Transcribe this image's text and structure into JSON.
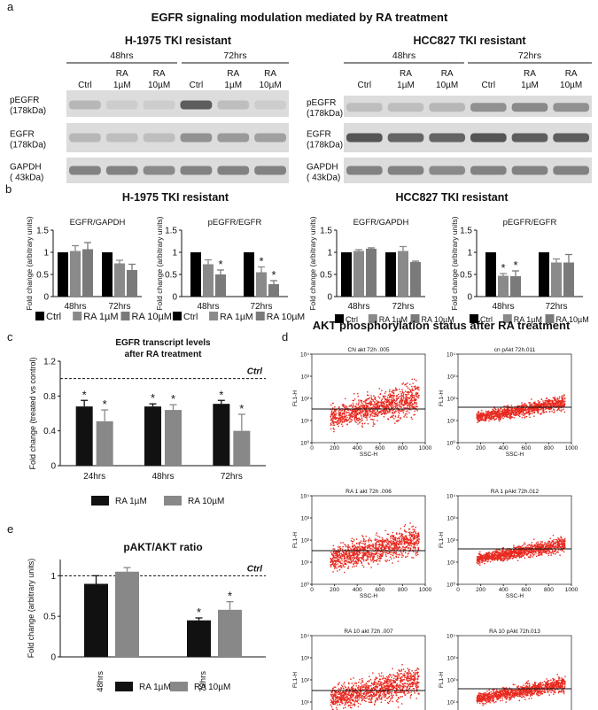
{
  "panel_a": {
    "label": "a",
    "title": "EGFR signaling modulation mediated by RA treatment",
    "blots": [
      {
        "title": "H-1975 TKI resistant",
        "time_groups": [
          "48hrs",
          "72hrs"
        ],
        "lanes": [
          [
            "Ctrl"
          ],
          [
            "RA",
            "1µM"
          ],
          [
            "RA",
            "10µM"
          ],
          [
            "Ctrl"
          ],
          [
            "RA",
            "1µM"
          ],
          [
            "RA",
            "10µM"
          ]
        ],
        "rows": [
          [
            "pEGFR",
            "(178kDa)"
          ],
          [
            "EGFR",
            "(178kDa)"
          ],
          [
            "GAPDH",
            "( 43kDa)"
          ]
        ]
      },
      {
        "title": "HCC827 TKI resistant",
        "time_groups": [
          "48hrs",
          "72hrs"
        ],
        "lanes": [
          [
            "Ctrl"
          ],
          [
            "RA",
            "1µM"
          ],
          [
            "RA",
            "10µM"
          ],
          [
            "Ctrl"
          ],
          [
            "RA",
            "1µM"
          ],
          [
            "RA",
            "10µM"
          ]
        ],
        "rows": [
          [
            "pEGFR",
            "(178kDa)"
          ],
          [
            "EGFR",
            "(178kDa)"
          ],
          [
            "GAPDH",
            "( 43kDa)"
          ]
        ]
      }
    ]
  },
  "panel_b": {
    "label": "b",
    "titles": [
      "H-1975 TKI resistant",
      "HCC827 TKI resistant"
    ]
  },
  "panel_c": {
    "label": "c"
  },
  "panel_d": {
    "label": "d",
    "title": "AKT phosphorylation status after RA treatment",
    "plots": [
      {
        "title": "CN akt 72h .005"
      },
      {
        "title": "cn pAkt 72h.011"
      },
      {
        "title": "RA 1 akt 72h .006"
      },
      {
        "title": "RA 1 pAkt 72h.012"
      },
      {
        "title": "RA 10 akt 72h .007"
      },
      {
        "title": "RA 10 pAkt 72h.013"
      }
    ],
    "xlabel": "SSC-H",
    "ylabel": "FL1-H",
    "xticks": [
      0,
      200,
      400,
      600,
      800,
      1000
    ],
    "yticks": [
      "10⁰",
      "10¹",
      "10²",
      "10³",
      "10⁴"
    ],
    "colors": {
      "dots": "#e8281e"
    }
  },
  "panel_e": {
    "label": "e"
  },
  "legend": {
    "ctrl": "Ctrl",
    "ra1": "RA 1µM",
    "ra10": "RA 10µM"
  },
  "colors": {
    "ctrl": "#000000",
    "ra1": "#8a8a8a",
    "ra10": "#7a7a7a",
    "ra1_dark": "#111111",
    "ra10_light": "#888888"
  },
  "chart_data": [
    {
      "id": "b1",
      "type": "bar",
      "title": "EGFR/GAPDH",
      "ylabel": "Fold change (arbitrary units)",
      "categories": [
        "48hrs",
        "72hrs"
      ],
      "ylim": [
        0,
        1.5
      ],
      "yticks": [
        0,
        0.5,
        1,
        1.5
      ],
      "series": [
        {
          "name": "Ctrl",
          "values": [
            1.0,
            1.0
          ],
          "errors": [
            0,
            0
          ],
          "sig": [
            false,
            false
          ]
        },
        {
          "name": "RA 1µM",
          "values": [
            1.03,
            0.75
          ],
          "errors": [
            0.12,
            0.07
          ],
          "sig": [
            false,
            false
          ]
        },
        {
          "name": "RA 10µM",
          "values": [
            1.07,
            0.6
          ],
          "errors": [
            0.15,
            0.13
          ],
          "sig": [
            false,
            false
          ]
        }
      ]
    },
    {
      "id": "b2",
      "type": "bar",
      "title": "pEGFR/EGFR",
      "ylabel": "Fold change (arbitrary units)",
      "categories": [
        "48hrs",
        "72hrs"
      ],
      "ylim": [
        0,
        1.5
      ],
      "yticks": [
        0,
        0.5,
        1,
        1.5
      ],
      "series": [
        {
          "name": "Ctrl",
          "values": [
            1.0,
            1.0
          ],
          "errors": [
            0,
            0
          ],
          "sig": [
            false,
            false
          ]
        },
        {
          "name": "RA 1µM",
          "values": [
            0.73,
            0.55
          ],
          "errors": [
            0.1,
            0.12
          ],
          "sig": [
            false,
            true
          ]
        },
        {
          "name": "RA 10µM",
          "values": [
            0.5,
            0.28
          ],
          "errors": [
            0.1,
            0.08
          ],
          "sig": [
            true,
            true
          ]
        }
      ]
    },
    {
      "id": "b3",
      "type": "bar",
      "title": "EGFR/GAPDH",
      "ylabel": "Fold change (arbitrary units)",
      "categories": [
        "48hrs",
        "72hrs"
      ],
      "ylim": [
        0,
        1.5
      ],
      "yticks": [
        0,
        0.5,
        1,
        1.5
      ],
      "series": [
        {
          "name": "Ctrl",
          "values": [
            1.0,
            1.0
          ],
          "errors": [
            0,
            0
          ],
          "sig": [
            false,
            false
          ]
        },
        {
          "name": "RA 1µM",
          "values": [
            1.03,
            1.03
          ],
          "errors": [
            0.03,
            0.1
          ],
          "sig": [
            false,
            false
          ]
        },
        {
          "name": "RA 10µM",
          "values": [
            1.08,
            0.78
          ],
          "errors": [
            0.02,
            0.02
          ],
          "sig": [
            false,
            false
          ]
        }
      ]
    },
    {
      "id": "b4",
      "type": "bar",
      "title": "pEGFR/EGFR",
      "ylabel": "Fold change (arbitrary units)",
      "categories": [
        "48hrs",
        "72hrs"
      ],
      "ylim": [
        0,
        1.5
      ],
      "yticks": [
        0,
        0.5,
        1,
        1.5
      ],
      "series": [
        {
          "name": "Ctrl",
          "values": [
            1.0,
            1.0
          ],
          "errors": [
            0,
            0
          ],
          "sig": [
            false,
            false
          ]
        },
        {
          "name": "RA 1µM",
          "values": [
            0.47,
            0.77
          ],
          "errors": [
            0.05,
            0.08
          ],
          "sig": [
            true,
            false
          ]
        },
        {
          "name": "RA 10µM",
          "values": [
            0.46,
            0.77
          ],
          "errors": [
            0.12,
            0.18
          ],
          "sig": [
            true,
            false
          ]
        }
      ]
    },
    {
      "id": "c",
      "type": "bar",
      "title": "EGFR transcript levels",
      "subtitle": "after RA treatment",
      "ylabel": "Fold change (treated vs control)",
      "categories": [
        "24hrs",
        "48hrs",
        "72hrs"
      ],
      "ylim": [
        0,
        1.2
      ],
      "yticks": [
        0,
        0.4,
        0.8,
        1.2
      ],
      "reference": {
        "value": 1.0,
        "label": "Ctrl"
      },
      "series": [
        {
          "name": "RA 1µM",
          "values": [
            0.68,
            0.68,
            0.71
          ],
          "errors": [
            0.07,
            0.03,
            0.04
          ],
          "sig": [
            true,
            true,
            true
          ]
        },
        {
          "name": "RA 10µM",
          "values": [
            0.51,
            0.64,
            0.4
          ],
          "errors": [
            0.13,
            0.06,
            0.19
          ],
          "sig": [
            true,
            true,
            true
          ]
        }
      ]
    },
    {
      "id": "e",
      "type": "bar",
      "title": "pAKT/AKT ratio",
      "ylabel": "Fold change (arbitrary units)",
      "categories": [
        "48hrs",
        "72hrs"
      ],
      "ylim": [
        0,
        1.2
      ],
      "yticks": [
        0,
        0.5,
        1
      ],
      "reference": {
        "value": 1.0,
        "label": "Ctrl"
      },
      "series": [
        {
          "name": "RA 1µM",
          "values": [
            0.9,
            0.45
          ],
          "errors": [
            0.1,
            0.03
          ],
          "sig": [
            false,
            true
          ]
        },
        {
          "name": "RA 10µM",
          "values": [
            1.05,
            0.58
          ],
          "errors": [
            0.05,
            0.1
          ],
          "sig": [
            false,
            true
          ]
        }
      ]
    }
  ]
}
